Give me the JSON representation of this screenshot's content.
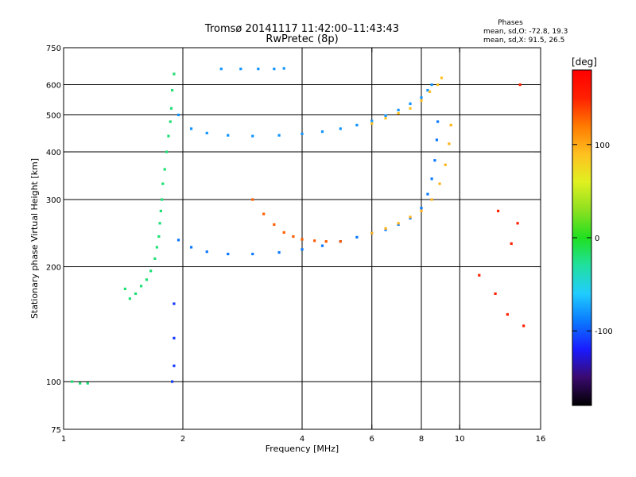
{
  "chart_data": {
    "type": "scatter",
    "title": "Tromsø 20141117 11:42:00–11:43:43",
    "subtitle": "RwPretec (8p)",
    "stats": {
      "heading": "Phases",
      "line_o": "mean, sd,O: -72.8, 19.3",
      "line_x": "mean, sd,X:  91.5, 26.5"
    },
    "xlabel": "Frequency [MHz]",
    "ylabel": "Stationary phase Virtual Height [km]",
    "x_scale": "log2",
    "y_scale": "log",
    "xlim": [
      1,
      16
    ],
    "ylim": [
      75,
      750
    ],
    "x_ticks": [
      1,
      2,
      4,
      6,
      8,
      10,
      16
    ],
    "y_ticks": [
      75,
      100,
      200,
      300,
      400,
      500,
      600,
      750
    ],
    "x_grid": [
      2,
      4,
      6,
      8,
      10
    ],
    "y_grid": [
      100,
      200,
      300,
      400,
      500,
      600
    ],
    "grid": true,
    "colorbar": {
      "label": "[deg]",
      "range": [
        -180,
        180
      ],
      "ticks": [
        100,
        0,
        -100
      ],
      "colormap": [
        "#000000",
        "#3a0a6e",
        "#1a1aff",
        "#0a78ff",
        "#20ccff",
        "#20e0a0",
        "#20e020",
        "#8ee020",
        "#e0f020",
        "#ffc020",
        "#ff7a00",
        "#ff2000",
        "#ff0000"
      ]
    },
    "series": [
      {
        "points": [
          [
            1.9,
            640
          ],
          [
            1.88,
            580
          ],
          [
            1.87,
            520
          ],
          [
            1.86,
            480
          ],
          [
            1.84,
            440
          ],
          [
            1.82,
            400
          ],
          [
            1.8,
            360
          ],
          [
            1.78,
            330
          ],
          [
            1.77,
            300
          ],
          [
            1.76,
            280
          ],
          [
            1.75,
            260
          ],
          [
            1.74,
            240
          ],
          [
            1.72,
            225
          ],
          [
            1.7,
            210
          ],
          [
            1.66,
            195
          ],
          [
            1.62,
            185
          ],
          [
            1.57,
            178
          ],
          [
            1.52,
            170
          ],
          [
            1.47,
            165
          ],
          [
            1.43,
            175
          ]
        ],
        "phase": -20
      },
      {
        "points": [
          [
            1.95,
            235
          ],
          [
            2.1,
            225
          ],
          [
            2.3,
            219
          ],
          [
            2.6,
            216
          ],
          [
            3.0,
            216
          ],
          [
            3.5,
            218
          ],
          [
            4.0,
            222
          ],
          [
            4.5,
            227
          ],
          [
            5.0,
            233
          ],
          [
            5.5,
            239
          ],
          [
            6.0,
            245
          ],
          [
            6.5,
            250
          ],
          [
            7.0,
            258
          ],
          [
            7.5,
            268
          ],
          [
            8.0,
            285
          ],
          [
            8.3,
            310
          ],
          [
            8.5,
            340
          ],
          [
            8.65,
            380
          ],
          [
            8.75,
            430
          ],
          [
            8.8,
            480
          ]
        ],
        "phase": -90
      },
      {
        "points": [
          [
            1.95,
            500
          ],
          [
            2.1,
            460
          ],
          [
            2.3,
            448
          ],
          [
            2.6,
            442
          ],
          [
            3.0,
            440
          ],
          [
            3.5,
            442
          ],
          [
            4.0,
            446
          ],
          [
            4.5,
            452
          ],
          [
            5.0,
            460
          ],
          [
            5.5,
            470
          ],
          [
            6.0,
            482
          ],
          [
            6.5,
            498
          ],
          [
            7.0,
            515
          ],
          [
            7.5,
            535
          ],
          [
            8.0,
            555
          ],
          [
            8.3,
            580
          ],
          [
            8.5,
            600
          ]
        ],
        "phase": -80
      },
      {
        "points": [
          [
            3.0,
            300
          ],
          [
            3.2,
            275
          ],
          [
            3.4,
            258
          ],
          [
            3.6,
            246
          ],
          [
            3.8,
            240
          ],
          [
            4.0,
            236
          ],
          [
            4.3,
            234
          ],
          [
            4.6,
            233
          ],
          [
            5.0,
            233
          ]
        ],
        "phase": 130
      },
      {
        "points": [
          [
            6.0,
            475
          ],
          [
            6.5,
            490
          ],
          [
            7.0,
            505
          ],
          [
            7.5,
            520
          ],
          [
            8.0,
            545
          ],
          [
            8.4,
            575
          ],
          [
            8.8,
            600
          ],
          [
            9.0,
            625
          ]
        ],
        "phase": 90
      },
      {
        "points": [
          [
            6.0,
            245
          ],
          [
            6.5,
            252
          ],
          [
            7.0,
            260
          ],
          [
            7.5,
            270
          ],
          [
            8.0,
            280
          ],
          [
            8.5,
            300
          ],
          [
            8.9,
            330
          ],
          [
            9.2,
            370
          ],
          [
            9.4,
            420
          ],
          [
            9.5,
            470
          ]
        ],
        "phase": 95
      },
      {
        "points": [
          [
            2.5,
            660
          ],
          [
            2.8,
            660
          ],
          [
            3.1,
            660
          ],
          [
            3.4,
            660
          ],
          [
            3.6,
            662
          ]
        ],
        "phase": -80
      },
      {
        "points": [
          [
            1.05,
            100
          ],
          [
            1.1,
            99
          ],
          [
            1.15,
            99
          ]
        ],
        "phase": -20
      },
      {
        "points": [
          [
            1.9,
            160
          ],
          [
            1.9,
            130
          ],
          [
            1.9,
            110
          ],
          [
            1.88,
            100
          ]
        ],
        "phase": -110
      },
      {
        "points": [
          [
            11.2,
            190
          ],
          [
            12.3,
            170
          ],
          [
            13.2,
            150
          ],
          [
            14.5,
            140
          ],
          [
            13.5,
            230
          ],
          [
            14.0,
            260
          ],
          [
            12.5,
            280
          ],
          [
            14.2,
            600
          ]
        ],
        "phase": 150
      }
    ]
  }
}
